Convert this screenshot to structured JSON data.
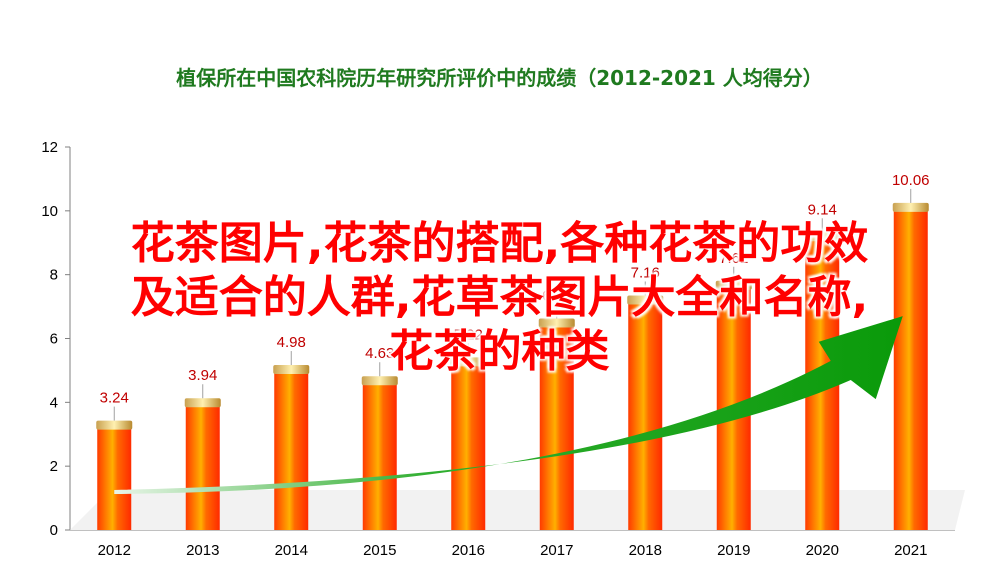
{
  "chart_data": {
    "type": "bar",
    "title": "植保所在中国农科院历年研究所评价中的成绩（2012-2021  人均得分）",
    "categories": [
      "2012",
      "2013",
      "2014",
      "2015",
      "2016",
      "2017",
      "2018",
      "2019",
      "2020",
      "2021"
    ],
    "values": [
      3.24,
      3.94,
      4.98,
      4.63,
      5.22,
      6.44,
      7.16,
      7.62,
      9.14,
      10.06
    ],
    "value_labels": [
      "3.24",
      "3.94",
      "4.98",
      "4.63",
      "5.22",
      "6.44",
      "7.16",
      "7.62",
      "9.14",
      "10.06"
    ],
    "ylim": [
      0,
      12
    ],
    "yticks": [
      0,
      2,
      4,
      6,
      8,
      10,
      12
    ],
    "xlabel": "",
    "ylabel": "",
    "grid": false,
    "legend": "none",
    "bar_color": "#ff3a00",
    "bar_highlight": "#ffd200",
    "cap_color": "#e8c870",
    "trend_arrow_color": "#1aa51a",
    "value_label_color": "#c00000"
  },
  "overlay": {
    "line1": "花茶图片,花茶的搭配,各种花茶的功效",
    "line2": "及适合的人群,花草茶图片大全和名称,",
    "line3": "花茶的种类"
  }
}
